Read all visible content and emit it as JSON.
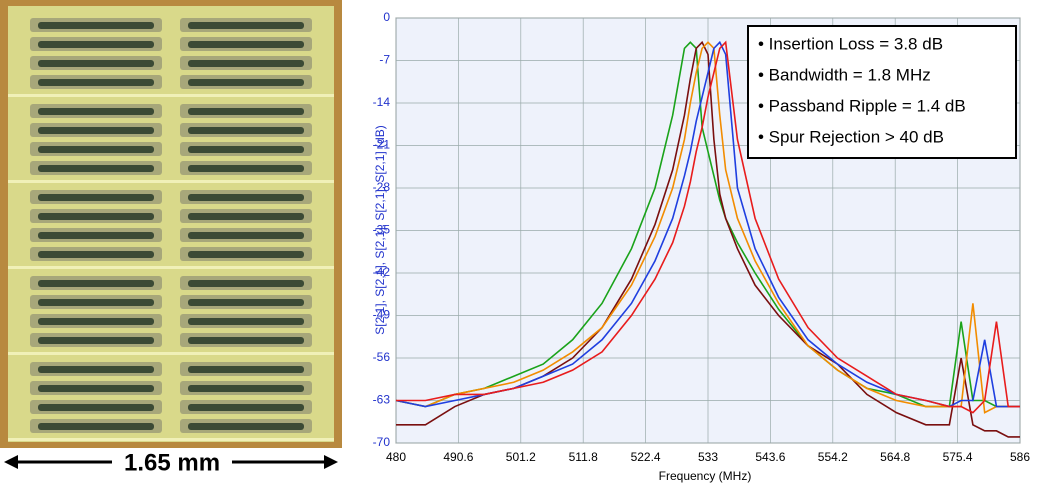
{
  "scale_bar": {
    "label": "1.65 mm"
  },
  "chart_data": {
    "type": "line",
    "x_label": "Frequency (MHz)",
    "y_label": "S[2,1], S[2,1], S[2,1], S[2,1], S[2,1] (dB)",
    "annotations": [
      "• Insertion Loss = 3.8 dB",
      "• Bandwidth = 1.8 MHz",
      "• Passband Ripple = 1.4 dB",
      "• Spur Rejection > 40 dB"
    ],
    "xlim": [
      480,
      586
    ],
    "xticks": [
      480,
      490.6,
      501.2,
      511.8,
      522.4,
      533,
      543.6,
      554.2,
      564.8,
      575.4,
      586
    ],
    "ylim": [
      -70,
      0
    ],
    "yticks": [
      0,
      -7,
      -14,
      -21,
      -28,
      -35,
      -42,
      -49,
      -56,
      -63,
      -70
    ],
    "grid": true,
    "x": [
      480,
      485,
      490,
      495,
      500,
      505,
      510,
      515,
      520,
      524,
      527,
      529,
      530,
      531,
      532,
      533,
      534,
      535,
      536,
      538,
      541,
      545,
      550,
      555,
      560,
      565,
      570,
      574,
      576,
      578,
      580,
      582,
      584,
      586
    ],
    "series": [
      {
        "color": "#1aa31a",
        "values": [
          -63,
          -64,
          -62,
          -61,
          -59,
          -57,
          -53,
          -47,
          -38,
          -28,
          -16,
          -5,
          -4,
          -5,
          -18,
          -22,
          -26,
          -30,
          -33,
          -37,
          -42,
          -48,
          -54,
          -58,
          -61,
          -62,
          -64,
          -64,
          -50,
          -63,
          -63,
          -64,
          -64,
          -64
        ]
      },
      {
        "color": "#7a0f0f",
        "values": [
          -67,
          -67,
          -64,
          -62,
          -61,
          -59,
          -56,
          -51,
          -43,
          -34,
          -25,
          -16,
          -10,
          -5,
          -4,
          -6,
          -20,
          -29,
          -33,
          -38,
          -44,
          -49,
          -54,
          -57,
          -62,
          -65,
          -67,
          -67,
          -56,
          -67,
          -68,
          -68,
          -69,
          -69
        ]
      },
      {
        "color": "#f28c00",
        "values": [
          -63,
          -64,
          -62,
          -61,
          -60,
          -58,
          -55,
          -51,
          -44,
          -36,
          -28,
          -20,
          -14,
          -9,
          -5,
          -4,
          -5,
          -16,
          -25,
          -33,
          -40,
          -47,
          -54,
          -58,
          -61,
          -63,
          -64,
          -64,
          -64,
          -47,
          -65,
          -64,
          -64,
          -64
        ]
      },
      {
        "color": "#1f3fe0",
        "values": [
          -63,
          -64,
          -63,
          -62,
          -61,
          -59,
          -57,
          -53,
          -47,
          -40,
          -33,
          -26,
          -22,
          -17,
          -13,
          -9,
          -5,
          -4,
          -6,
          -28,
          -38,
          -46,
          -53,
          -57,
          -60,
          -62,
          -63,
          -64,
          -63,
          -63,
          -53,
          -64,
          -64,
          -64
        ]
      },
      {
        "color": "#e81c1c",
        "values": [
          -63,
          -63,
          -62,
          -62,
          -61,
          -60,
          -58,
          -55,
          -49,
          -43,
          -37,
          -31,
          -27,
          -22,
          -18,
          -13,
          -9,
          -5,
          -4,
          -20,
          -33,
          -43,
          -51,
          -56,
          -59,
          -62,
          -63,
          -64,
          -64,
          -65,
          -63,
          -50,
          -64,
          -64
        ]
      }
    ]
  }
}
